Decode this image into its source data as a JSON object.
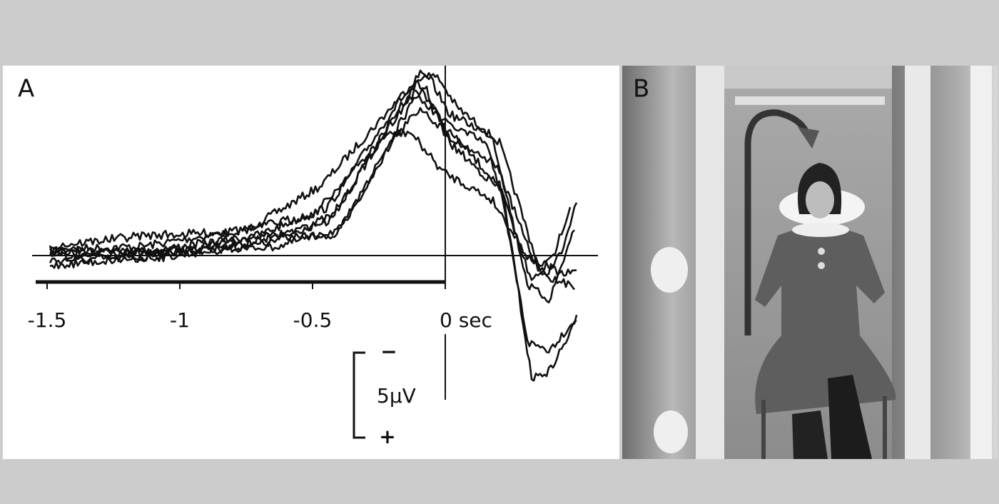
{
  "panels": [
    {
      "label": "A",
      "xticks": [
        -1.5,
        -1,
        -0.5,
        {
          "value": 0,
          "label": "0 sec"
        }
      ],
      "scale_bar": {
        "top": "−",
        "label": "5µV",
        "bottom": "+"
      }
    },
    {
      "label": "B"
    }
  ]
}
